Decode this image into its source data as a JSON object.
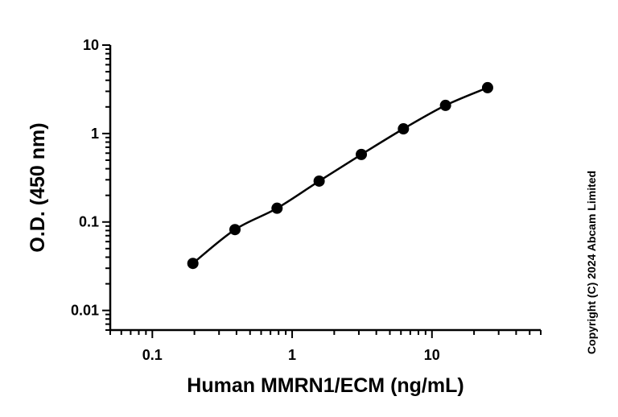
{
  "chart_data": {
    "type": "scatter",
    "title": "",
    "xlabel": "Human MMRN1/ECM (ng/mL)",
    "ylabel": "O.D. (450 nm)",
    "xscale": "log",
    "yscale": "log",
    "xlim": [
      0.05,
      60
    ],
    "ylim": [
      0.006,
      10
    ],
    "x_ticks": [
      {
        "value": 0.1,
        "label": "0.1"
      },
      {
        "value": 1,
        "label": "1"
      },
      {
        "value": 10,
        "label": "10"
      }
    ],
    "y_ticks": [
      {
        "value": 0.01,
        "label": "0.01"
      },
      {
        "value": 0.1,
        "label": "0.1"
      },
      {
        "value": 1,
        "label": "1"
      },
      {
        "value": 10,
        "label": "10"
      }
    ],
    "grid": false,
    "legend": "none",
    "series": [
      {
        "x": [
          0.195,
          0.39,
          0.78,
          1.56,
          3.125,
          6.25,
          12.5,
          25
        ],
        "y": [
          0.034,
          0.082,
          0.143,
          0.29,
          0.58,
          1.13,
          2.08,
          3.3
        ],
        "color": "#000000",
        "fit_line": true
      }
    ],
    "annotations": [
      "Copyright (C) 2024 Abcam Limited"
    ]
  }
}
